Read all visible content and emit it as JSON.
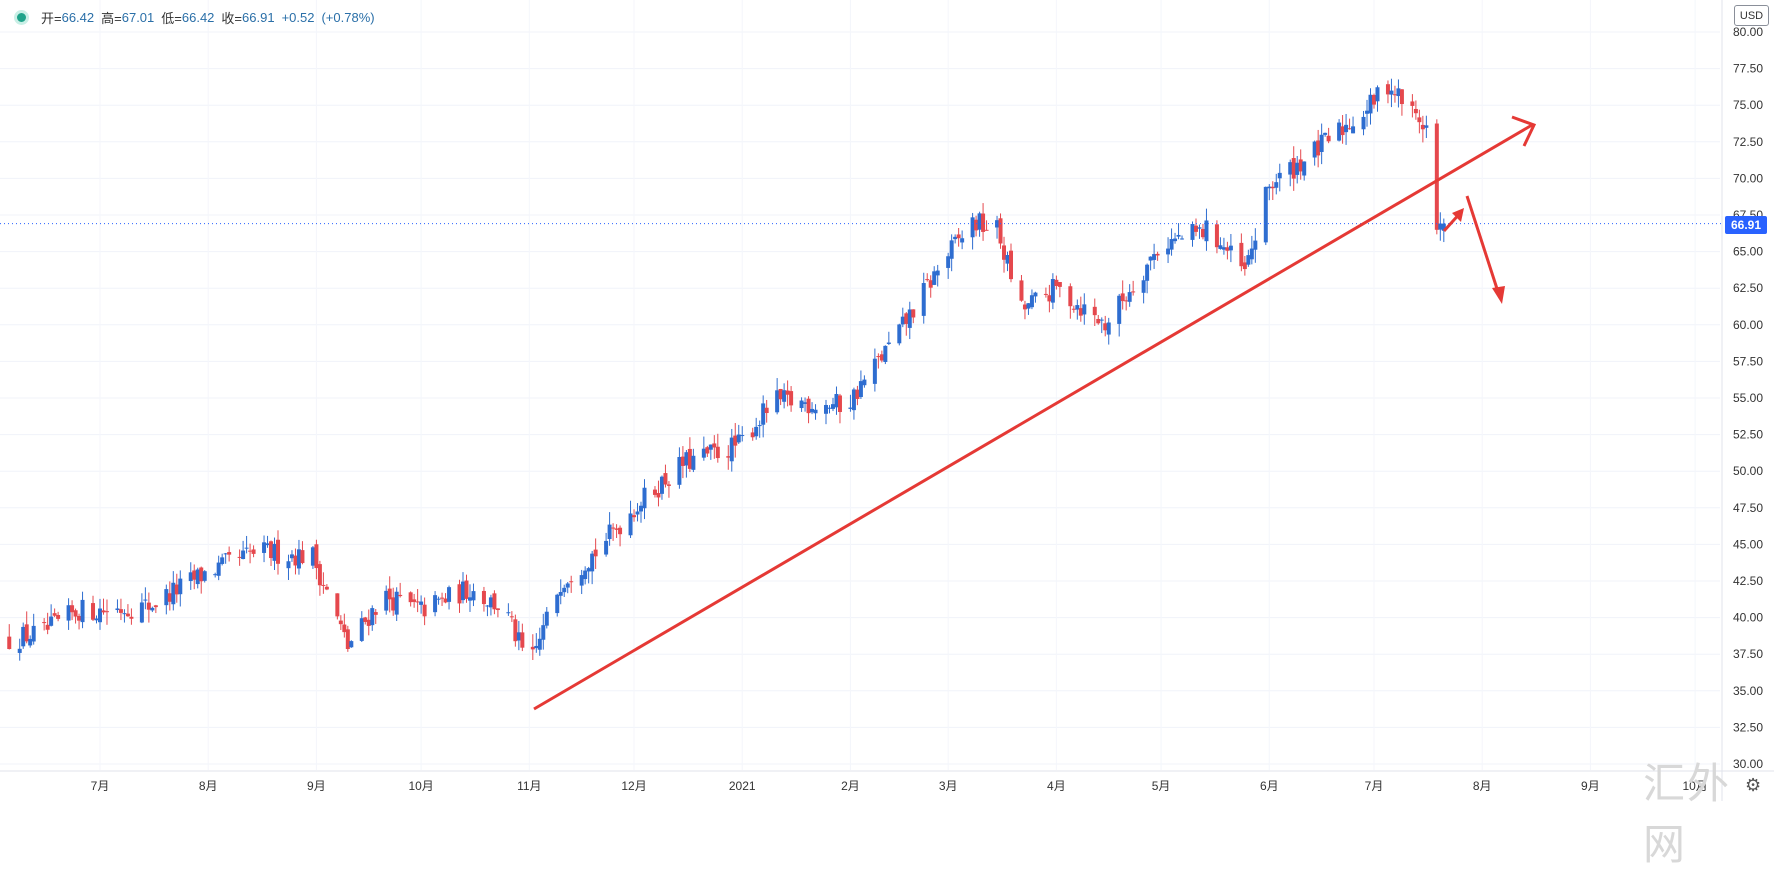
{
  "ohlc_bar": {
    "open_label": "开=",
    "open": "66.42",
    "high_label": "高=",
    "high": "67.01",
    "low_label": "低=",
    "low": "66.42",
    "close_label": "收=",
    "close": "66.91",
    "change": "+0.52",
    "change_pct": "(+0.78%)"
  },
  "currency": "USD",
  "last_price": "66.91",
  "watermark": "汇外网",
  "icons": {
    "status": "status-dot-icon",
    "settings": "gear-icon"
  },
  "colors": {
    "up": "#2e6dd0",
    "down": "#e5484d",
    "trendline": "#e53935",
    "price_line": "#2962ff"
  },
  "chart_data": {
    "type": "candlestick",
    "title": "",
    "x_tick_labels": [
      "7月",
      "8月",
      "9月",
      "10月",
      "11月",
      "12月",
      "2021",
      "2月",
      "3月",
      "4月",
      "5月",
      "6月",
      "7月",
      "8月",
      "9月",
      "10月"
    ],
    "y_tick_labels": [
      "80.00",
      "77.50",
      "75.00",
      "72.50",
      "70.00",
      "67.50",
      "65.00",
      "62.50",
      "60.00",
      "57.50",
      "55.00",
      "52.50",
      "50.00",
      "47.50",
      "45.00",
      "42.50",
      "40.00",
      "37.50",
      "35.00",
      "32.50",
      "30.00"
    ],
    "ylim": [
      30,
      80
    ],
    "current_price": 66.91,
    "grid": true,
    "anchors_close": [
      [
        "2020-06-05",
        38.5
      ],
      [
        "2020-06-15",
        39.0
      ],
      [
        "2020-06-25",
        40.5
      ],
      [
        "2020-07-01",
        40.5
      ],
      [
        "2020-07-15",
        40.8
      ],
      [
        "2020-07-31",
        43.0
      ],
      [
        "2020-08-15",
        44.5
      ],
      [
        "2020-08-31",
        44.2
      ],
      [
        "2020-09-10",
        38.0
      ],
      [
        "2020-09-20",
        41.5
      ],
      [
        "2020-10-01",
        40.5
      ],
      [
        "2020-10-15",
        42.0
      ],
      [
        "2020-10-25",
        40.5
      ],
      [
        "2020-11-01",
        36.5
      ],
      [
        "2020-11-10",
        42.5
      ],
      [
        "2020-11-20",
        44.5
      ],
      [
        "2020-12-01",
        47.5
      ],
      [
        "2020-12-15",
        50.5
      ],
      [
        "2020-12-31",
        51.8
      ],
      [
        "2021-01-10",
        54.8
      ],
      [
        "2021-01-31",
        54.5
      ],
      [
        "2021-02-15",
        59.5
      ],
      [
        "2021-02-28",
        64.5
      ],
      [
        "2021-03-08",
        67.0
      ],
      [
        "2021-03-15",
        66.5
      ],
      [
        "2021-03-22",
        61.0
      ],
      [
        "2021-04-01",
        62.5
      ],
      [
        "2021-04-15",
        60.0
      ],
      [
        "2021-05-01",
        65.5
      ],
      [
        "2021-05-15",
        66.5
      ],
      [
        "2021-05-25",
        63.5
      ],
      [
        "2021-06-01",
        69.5
      ],
      [
        "2021-06-15",
        72.0
      ],
      [
        "2021-06-30",
        75.0
      ],
      [
        "2021-07-05",
        76.5
      ],
      [
        "2021-07-12",
        74.5
      ],
      [
        "2021-07-16",
        73.5
      ],
      [
        "2021-07-19",
        66.4
      ],
      [
        "2021-07-21",
        66.9
      ]
    ]
  }
}
